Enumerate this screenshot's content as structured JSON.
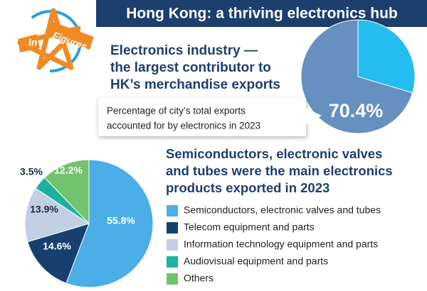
{
  "title": "Hong Kong: a thriving electronics hub",
  "logo": [
    "In",
    "Figures"
  ],
  "chart_data": [
    {
      "type": "pie",
      "title": [
        "Electronics industry —",
        "the largest contributor to",
        "HK’s merchandise exports"
      ],
      "subtitle": [
        "Percentage of city’s total exports",
        "accounted for by electronics in 2023"
      ],
      "values": [
        29.6,
        70.4
      ],
      "value_labels": [
        null,
        "70.4%"
      ],
      "colors": [
        "#25bdf0",
        "#6590c0"
      ]
    },
    {
      "type": "pie",
      "title": [
        "Semiconductors, electronic valves",
        "and tubes were the main electronics",
        "products exported in 2023"
      ],
      "categories": [
        "Semiconductors, electronic valves and tubes",
        "Telecom equipment and parts",
        "Information technology equipment and parts",
        "Audiovisual equipment and parts",
        "Others"
      ],
      "values": [
        55.8,
        14.6,
        13.9,
        3.5,
        12.2
      ],
      "value_labels": [
        "55.8%",
        "14.6%",
        "13.9%",
        "3.5%",
        "12.2%"
      ],
      "colors": [
        "#4baee6",
        "#17406f",
        "#c3cfe2",
        "#1bb39d",
        "#72c36d"
      ],
      "legend": "right"
    }
  ]
}
